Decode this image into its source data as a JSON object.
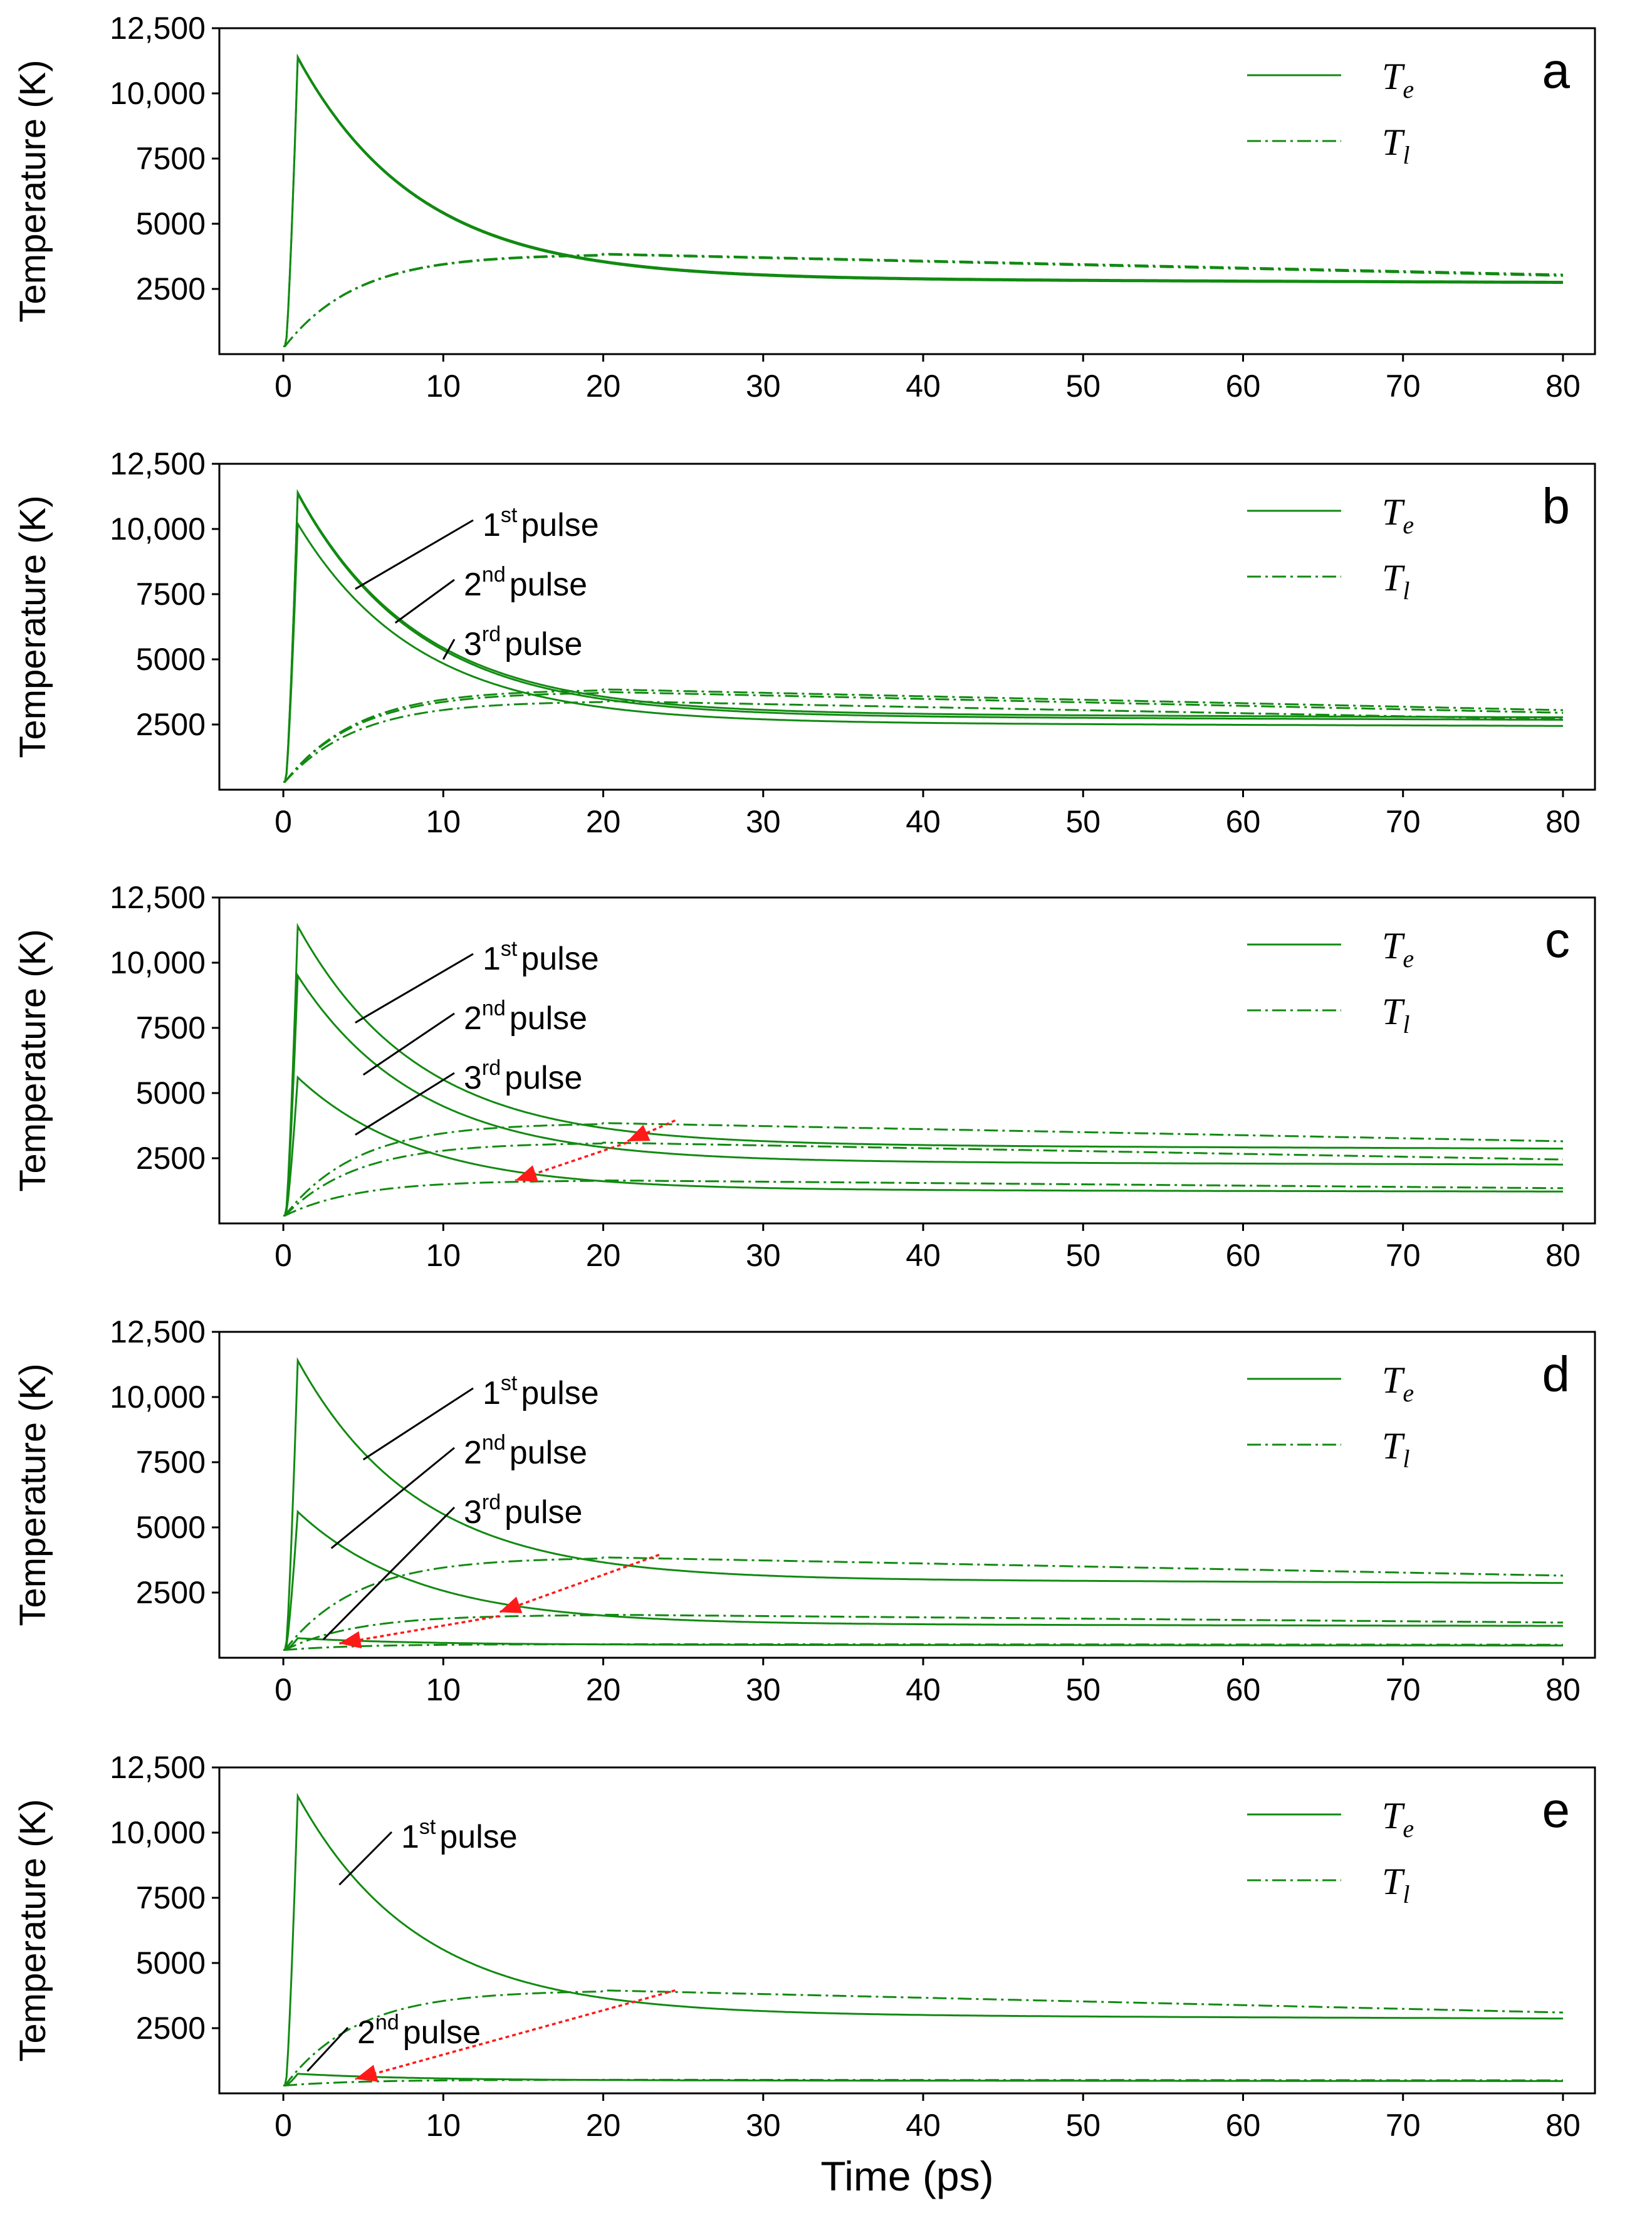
{
  "colors": {
    "series": "#118a11",
    "arrow": "#ff1a1a",
    "axis": "#000000"
  },
  "chart_data": [
    {
      "type": "line",
      "panel": "a",
      "xlabel": "",
      "ylabel": "Temperature (K)",
      "xlim": [
        -4,
        82
      ],
      "ylim": [
        0,
        12500
      ],
      "xticks": [
        "0",
        "10",
        "20",
        "30",
        "40",
        "50",
        "60",
        "70",
        "80"
      ],
      "yticks": [
        "2500",
        "5000",
        "7500",
        "10,000",
        "12,500"
      ],
      "legend": {
        "placement": "top-right",
        "entries": [
          "Te",
          "Tl"
        ]
      },
      "series": [
        {
          "name": "Te",
          "style": "solid",
          "pulses": [
            {
              "peak": 11400,
              "final": 2950
            },
            {
              "peak": 11350,
              "final": 2900
            }
          ]
        },
        {
          "name": "Tl",
          "style": "dashdot",
          "pulses": [
            {
              "peak": 3850,
              "final": 3050
            },
            {
              "peak": 3820,
              "final": 3000
            }
          ]
        }
      ],
      "annotations": []
    },
    {
      "type": "line",
      "panel": "b",
      "xlabel": "",
      "ylabel": "Temperature (K)",
      "xlim": [
        -4,
        82
      ],
      "ylim": [
        0,
        12500
      ],
      "xticks": [
        "0",
        "10",
        "20",
        "30",
        "40",
        "50",
        "60",
        "70",
        "80"
      ],
      "yticks": [
        "2500",
        "5000",
        "7500",
        "10,000",
        "12,500"
      ],
      "legend": {
        "placement": "top-right",
        "entries": [
          "Te",
          "Tl"
        ]
      },
      "series": [
        {
          "name": "Te",
          "style": "solid",
          "pulses": [
            {
              "peak": 11400,
              "final": 2950
            },
            {
              "peak": 11350,
              "final": 2850
            },
            {
              "peak": 10200,
              "final": 2600
            }
          ]
        },
        {
          "name": "Tl",
          "style": "dashdot",
          "pulses": [
            {
              "peak": 3850,
              "final": 3050
            },
            {
              "peak": 3750,
              "final": 2950
            },
            {
              "peak": 3400,
              "final": 2700
            }
          ]
        }
      ],
      "annotations": [
        {
          "sup": "st",
          "label": "pulse",
          "num": "1",
          "x": 4.5,
          "y": 7700
        },
        {
          "sup": "nd",
          "label": "pulse",
          "num": "2",
          "x": 7,
          "y": 6400
        },
        {
          "sup": "rd",
          "label": "pulse",
          "num": "3",
          "x": 10,
          "y": 5000
        }
      ]
    },
    {
      "type": "line",
      "panel": "c",
      "xlabel": "",
      "ylabel": "Temperature (K)",
      "xlim": [
        -4,
        82
      ],
      "ylim": [
        0,
        12500
      ],
      "xticks": [
        "0",
        "10",
        "20",
        "30",
        "40",
        "50",
        "60",
        "70",
        "80"
      ],
      "yticks": [
        "2500",
        "5000",
        "7500",
        "10,000",
        "12,500"
      ],
      "legend": {
        "placement": "top-right",
        "entries": [
          "Te",
          "Tl"
        ]
      },
      "series": [
        {
          "name": "Te",
          "style": "solid",
          "pulses": [
            {
              "peak": 11400,
              "final": 3050
            },
            {
              "peak": 9500,
              "final": 2400
            },
            {
              "peak": 5600,
              "final": 1300
            }
          ]
        },
        {
          "name": "Tl",
          "style": "dashdot",
          "pulses": [
            {
              "peak": 3850,
              "final": 3150
            },
            {
              "peak": 3100,
              "final": 2450
            },
            {
              "peak": 1650,
              "final": 1350
            }
          ]
        }
      ],
      "annotations": [
        {
          "sup": "st",
          "label": "pulse",
          "num": "1",
          "x": 4.5,
          "y": 7700
        },
        {
          "sup": "nd",
          "label": "pulse",
          "num": "2",
          "x": 5,
          "y": 5700
        },
        {
          "sup": "rd",
          "label": "pulse",
          "num": "3",
          "x": 4.5,
          "y": 3400
        }
      ],
      "arrows": [
        {
          "from": [
            24.5,
            3950
          ],
          "to": [
            21.5,
            3150
          ]
        },
        {
          "from": [
            21.5,
            3100
          ],
          "to": [
            14.5,
            1650
          ]
        }
      ]
    },
    {
      "type": "line",
      "panel": "d",
      "xlabel": "",
      "ylabel": "Temperature (K)",
      "xlim": [
        -4,
        82
      ],
      "ylim": [
        0,
        12500
      ],
      "xticks": [
        "0",
        "10",
        "20",
        "30",
        "40",
        "50",
        "60",
        "70",
        "80"
      ],
      "yticks": [
        "2500",
        "5000",
        "7500",
        "10,000",
        "12,500"
      ],
      "legend": {
        "placement": "top-right",
        "entries": [
          "Te",
          "Tl"
        ]
      },
      "series": [
        {
          "name": "Te",
          "style": "solid",
          "pulses": [
            {
              "peak": 11400,
              "final": 3050
            },
            {
              "peak": 5600,
              "final": 1300
            },
            {
              "peak": 750,
              "final": 500
            }
          ]
        },
        {
          "name": "Tl",
          "style": "dashdot",
          "pulses": [
            {
              "peak": 3850,
              "final": 3150
            },
            {
              "peak": 1650,
              "final": 1350
            },
            {
              "peak": 520,
              "final": 500
            }
          ]
        }
      ],
      "annotations": [
        {
          "sup": "st",
          "label": "pulse",
          "num": "1",
          "x": 5,
          "y": 7600
        },
        {
          "sup": "nd",
          "label": "pulse",
          "num": "2",
          "x": 3,
          "y": 4200
        },
        {
          "sup": "rd",
          "label": "pulse",
          "num": "3",
          "x": 2.5,
          "y": 700
        }
      ],
      "arrows": [
        {
          "from": [
            23.5,
            3950
          ],
          "to": [
            13.5,
            1750
          ]
        },
        {
          "from": [
            13.5,
            1600
          ],
          "to": [
            3.5,
            550
          ]
        }
      ]
    },
    {
      "type": "line",
      "panel": "e",
      "xlabel": "Time (ps)",
      "ylabel": "Temperature (K)",
      "xlim": [
        -4,
        82
      ],
      "ylim": [
        0,
        12500
      ],
      "xticks": [
        "0",
        "10",
        "20",
        "30",
        "40",
        "50",
        "60",
        "70",
        "80"
      ],
      "yticks": [
        "2500",
        "5000",
        "7500",
        "10,000",
        "12,500"
      ],
      "legend": {
        "placement": "top-right",
        "entries": [
          "Te",
          "Tl"
        ]
      },
      "series": [
        {
          "name": "Te",
          "style": "solid",
          "pulses": [
            {
              "peak": 11400,
              "final": 3050
            },
            {
              "peak": 750,
              "final": 500
            }
          ]
        },
        {
          "name": "Tl",
          "style": "dashdot",
          "pulses": [
            {
              "peak": 3950,
              "final": 3100
            },
            {
              "peak": 520,
              "final": 500
            }
          ]
        }
      ],
      "annotations": [
        {
          "sup": "st",
          "label": "pulse",
          "num": "1",
          "x": 3.5,
          "y": 8000
        },
        {
          "sup": "nd",
          "label": "pulse",
          "num": "2",
          "x": 1.5,
          "y": 850
        }
      ],
      "arrows": [
        {
          "from": [
            24.5,
            3950
          ],
          "to": [
            4.5,
            550
          ]
        }
      ]
    }
  ]
}
